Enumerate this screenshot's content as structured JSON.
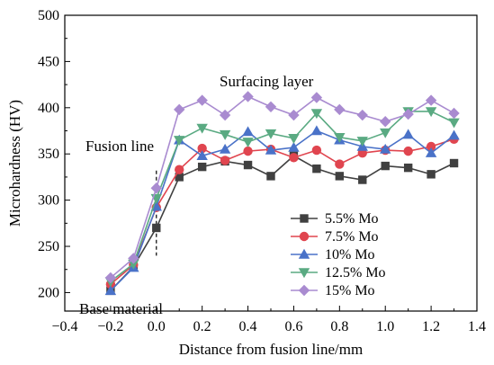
{
  "chart_data": {
    "type": "line",
    "xlabel": "Distance from fusion line/mm",
    "ylabel": "Microhardness (HV)",
    "xlim": [
      -0.4,
      1.4
    ],
    "ylim": [
      180,
      500
    ],
    "xticks": [
      -0.4,
      -0.2,
      0.0,
      0.2,
      0.4,
      0.6,
      0.8,
      1.0,
      1.2,
      1.4
    ],
    "xtick_labels": [
      "−0.4",
      "−0.2",
      "0.0",
      "0.2",
      "0.4",
      "0.6",
      "0.8",
      "1.0",
      "1.2",
      "1.4"
    ],
    "yticks": [
      200,
      250,
      300,
      350,
      400,
      450,
      500
    ],
    "ytick_labels": [
      "200",
      "250",
      "300",
      "350",
      "400",
      "450",
      "500"
    ],
    "x": [
      -0.2,
      -0.1,
      0.0,
      0.1,
      0.2,
      0.3,
      0.4,
      0.5,
      0.6,
      0.7,
      0.8,
      0.9,
      1.0,
      1.1,
      1.2,
      1.3
    ],
    "series": [
      {
        "name": "5.5% Mo",
        "color": "#404040",
        "marker": "square",
        "values": [
          202,
          228,
          270,
          325,
          336,
          342,
          338,
          326,
          348,
          334,
          326,
          322,
          337,
          335,
          328,
          340
        ]
      },
      {
        "name": "7.5% Mo",
        "color": "#e0454f",
        "marker": "circle",
        "values": [
          209,
          230,
          292,
          333,
          356,
          343,
          353,
          355,
          346,
          354,
          339,
          351,
          354,
          353,
          358,
          366
        ]
      },
      {
        "name": "10% Mo",
        "color": "#4a72c8",
        "marker": "triangle-up",
        "values": [
          202,
          227,
          293,
          365,
          348,
          355,
          374,
          354,
          357,
          375,
          365,
          358,
          355,
          371,
          351,
          370
        ]
      },
      {
        "name": "12.5% Mo",
        "color": "#5aaa82",
        "marker": "triangle-down",
        "values": [
          212,
          231,
          302,
          365,
          378,
          371,
          363,
          372,
          367,
          394,
          368,
          364,
          373,
          396,
          396,
          384
        ]
      },
      {
        "name": "15% Mo",
        "color": "#a98bd0",
        "marker": "diamond",
        "values": [
          216,
          237,
          313,
          398,
          408,
          392,
          412,
          401,
          392,
          411,
          398,
          392,
          385,
          393,
          408,
          394
        ]
      }
    ],
    "annotations": {
      "surfacing": "Surfacing layer",
      "fusion": "Fusion line",
      "base": "Base material"
    },
    "fusion_line_x": 0.0,
    "fusion_line_yrange": [
      240,
      332
    ],
    "grid": false,
    "legend_position": "lower-right"
  }
}
